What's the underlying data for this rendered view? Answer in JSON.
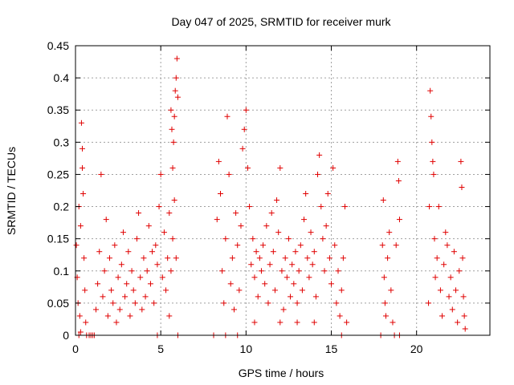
{
  "chart_data": {
    "type": "scatter",
    "title": "Day 047 of 2025, SRMTID for receiver murk",
    "xlabel": "GPS time / hours",
    "ylabel": "SRMTID / TECUs",
    "xlim": [
      0,
      24.3
    ],
    "ylim": [
      0,
      0.45
    ],
    "x_ticks": [
      0,
      5,
      10,
      15,
      20
    ],
    "x_tick_labels": [
      "0",
      "5",
      "10",
      "15",
      "20"
    ],
    "y_ticks": [
      0,
      0.05,
      0.1,
      0.15,
      0.2,
      0.25,
      0.3,
      0.35,
      0.4,
      0.45
    ],
    "y_tick_labels": [
      "0",
      "0.05",
      "0.1",
      "0.15",
      "0.2",
      "0.25",
      "0.3",
      "0.35",
      "0.4",
      "0.45"
    ],
    "grid": true,
    "marker": "+",
    "marker_color": "#e00000",
    "series": [
      {
        "name": "SRMTID",
        "points": [
          [
            0.05,
            0.14
          ],
          [
            0.1,
            0.09
          ],
          [
            0.15,
            0.05
          ],
          [
            0.2,
            0.2
          ],
          [
            0.25,
            0.03
          ],
          [
            0.3,
            0.17
          ],
          [
            0.35,
            0.33
          ],
          [
            0.4,
            0.29
          ],
          [
            0.4,
            0.26
          ],
          [
            0.45,
            0.22
          ],
          [
            0.5,
            0.12
          ],
          [
            0.55,
            0.07
          ],
          [
            0.6,
            0.02
          ],
          [
            0.2,
            0.0
          ],
          [
            0.3,
            0.005
          ],
          [
            0.65,
            0.0
          ],
          [
            0.8,
            0.0
          ],
          [
            0.9,
            0.0
          ],
          [
            1.0,
            0.0
          ],
          [
            1.1,
            0.0
          ],
          [
            1.2,
            0.04
          ],
          [
            1.3,
            0.08
          ],
          [
            1.4,
            0.13
          ],
          [
            1.5,
            0.25
          ],
          [
            1.6,
            0.06
          ],
          [
            1.7,
            0.1
          ],
          [
            1.8,
            0.18
          ],
          [
            1.9,
            0.03
          ],
          [
            2.0,
            0.12
          ],
          [
            2.1,
            0.07
          ],
          [
            2.2,
            0.05
          ],
          [
            2.3,
            0.14
          ],
          [
            2.4,
            0.02
          ],
          [
            2.5,
            0.09
          ],
          [
            2.6,
            0.04
          ],
          [
            2.7,
            0.11
          ],
          [
            2.8,
            0.16
          ],
          [
            2.9,
            0.06
          ],
          [
            3.0,
            0.08
          ],
          [
            3.1,
            0.13
          ],
          [
            3.2,
            0.03
          ],
          [
            3.3,
            0.1
          ],
          [
            3.4,
            0.07
          ],
          [
            3.5,
            0.05
          ],
          [
            3.6,
            0.15
          ],
          [
            3.7,
            0.19
          ],
          [
            3.8,
            0.09
          ],
          [
            3.9,
            0.04
          ],
          [
            4.0,
            0.12
          ],
          [
            4.1,
            0.06
          ],
          [
            4.2,
            0.1
          ],
          [
            4.3,
            0.17
          ],
          [
            4.4,
            0.08
          ],
          [
            4.5,
            0.13
          ],
          [
            4.6,
            0.05
          ],
          [
            4.7,
            0.14
          ],
          [
            4.8,
            0.11
          ],
          [
            4.9,
            0.2
          ],
          [
            5.0,
            0.25
          ],
          [
            5.1,
            0.09
          ],
          [
            5.2,
            0.16
          ],
          [
            5.3,
            0.07
          ],
          [
            5.4,
            0.12
          ],
          [
            5.5,
            0.19
          ],
          [
            5.6,
            0.35
          ],
          [
            5.65,
            0.32
          ],
          [
            5.7,
            0.26
          ],
          [
            5.75,
            0.3
          ],
          [
            5.8,
            0.34
          ],
          [
            5.85,
            0.38
          ],
          [
            5.9,
            0.4
          ],
          [
            5.95,
            0.43
          ],
          [
            6.0,
            0.37
          ],
          [
            6.0,
            0.0
          ],
          [
            4.8,
            0.0
          ],
          [
            5.5,
            0.03
          ],
          [
            5.6,
            0.1
          ],
          [
            5.7,
            0.15
          ],
          [
            5.8,
            0.21
          ],
          [
            5.9,
            0.12
          ],
          [
            8.1,
            0.0
          ],
          [
            8.3,
            0.18
          ],
          [
            8.4,
            0.27
          ],
          [
            8.5,
            0.22
          ],
          [
            8.6,
            0.1
          ],
          [
            8.7,
            0.05
          ],
          [
            8.8,
            0.15
          ],
          [
            8.9,
            0.34
          ],
          [
            9.0,
            0.25
          ],
          [
            9.1,
            0.08
          ],
          [
            9.2,
            0.12
          ],
          [
            9.3,
            0.04
          ],
          [
            9.4,
            0.19
          ],
          [
            9.5,
            0.14
          ],
          [
            9.6,
            0.07
          ],
          [
            9.7,
            0.17
          ],
          [
            9.8,
            0.29
          ],
          [
            9.9,
            0.32
          ],
          [
            10.0,
            0.35
          ],
          [
            10.1,
            0.26
          ],
          [
            10.2,
            0.2
          ],
          [
            10.3,
            0.11
          ],
          [
            10.4,
            0.15
          ],
          [
            10.5,
            0.09
          ],
          [
            10.6,
            0.13
          ],
          [
            10.7,
            0.06
          ],
          [
            10.8,
            0.12
          ],
          [
            10.9,
            0.1
          ],
          [
            11.0,
            0.14
          ],
          [
            11.1,
            0.08
          ],
          [
            11.2,
            0.17
          ],
          [
            11.3,
            0.05
          ],
          [
            11.4,
            0.11
          ],
          [
            11.5,
            0.19
          ],
          [
            11.6,
            0.13
          ],
          [
            11.7,
            0.07
          ],
          [
            11.8,
            0.21
          ],
          [
            11.9,
            0.16
          ],
          [
            12.0,
            0.26
          ],
          [
            12.1,
            0.1
          ],
          [
            12.2,
            0.04
          ],
          [
            12.3,
            0.12
          ],
          [
            12.4,
            0.09
          ],
          [
            12.5,
            0.15
          ],
          [
            12.6,
            0.06
          ],
          [
            12.7,
            0.11
          ],
          [
            12.8,
            0.08
          ],
          [
            12.9,
            0.13
          ],
          [
            13.0,
            0.05
          ],
          [
            13.1,
            0.1
          ],
          [
            13.2,
            0.14
          ],
          [
            13.3,
            0.07
          ],
          [
            13.4,
            0.18
          ],
          [
            13.5,
            0.22
          ],
          [
            13.6,
            0.12
          ],
          [
            13.7,
            0.09
          ],
          [
            13.8,
            0.16
          ],
          [
            13.9,
            0.11
          ],
          [
            14.0,
            0.13
          ],
          [
            14.1,
            0.06
          ],
          [
            14.2,
            0.25
          ],
          [
            14.3,
            0.28
          ],
          [
            14.4,
            0.2
          ],
          [
            14.5,
            0.15
          ],
          [
            14.6,
            0.1
          ],
          [
            14.7,
            0.17
          ],
          [
            14.8,
            0.22
          ],
          [
            14.9,
            0.12
          ],
          [
            15.0,
            0.08
          ],
          [
            15.1,
            0.26
          ],
          [
            15.2,
            0.14
          ],
          [
            15.3,
            0.05
          ],
          [
            15.4,
            0.1
          ],
          [
            15.5,
            0.03
          ],
          [
            15.6,
            0.07
          ],
          [
            15.7,
            0.12
          ],
          [
            15.8,
            0.2
          ],
          [
            15.9,
            0.02
          ],
          [
            8.8,
            0.0
          ],
          [
            9.5,
            0.0
          ],
          [
            10.5,
            0.02
          ],
          [
            12.0,
            0.02
          ],
          [
            13.0,
            0.02
          ],
          [
            14.0,
            0.02
          ],
          [
            15.6,
            0.0
          ],
          [
            17.9,
            0.0
          ],
          [
            18.0,
            0.14
          ],
          [
            18.05,
            0.21
          ],
          [
            18.1,
            0.09
          ],
          [
            18.15,
            0.05
          ],
          [
            18.2,
            0.03
          ],
          [
            18.3,
            0.12
          ],
          [
            18.4,
            0.16
          ],
          [
            18.5,
            0.07
          ],
          [
            18.6,
            0.02
          ],
          [
            18.7,
            0.0
          ],
          [
            18.8,
            0.14
          ],
          [
            18.9,
            0.27
          ],
          [
            18.95,
            0.24
          ],
          [
            19.0,
            0.18
          ],
          [
            19.0,
            0.0
          ],
          [
            20.7,
            0.05
          ],
          [
            20.75,
            0.2
          ],
          [
            20.8,
            0.38
          ],
          [
            20.85,
            0.34
          ],
          [
            20.9,
            0.3
          ],
          [
            20.95,
            0.27
          ],
          [
            21.0,
            0.25
          ],
          [
            21.05,
            0.15
          ],
          [
            21.1,
            0.09
          ],
          [
            21.2,
            0.12
          ],
          [
            21.3,
            0.2
          ],
          [
            21.4,
            0.07
          ],
          [
            21.5,
            0.03
          ],
          [
            21.6,
            0.11
          ],
          [
            21.7,
            0.16
          ],
          [
            21.8,
            0.14
          ],
          [
            21.9,
            0.06
          ],
          [
            22.0,
            0.09
          ],
          [
            22.1,
            0.04
          ],
          [
            22.2,
            0.13
          ],
          [
            22.3,
            0.07
          ],
          [
            22.4,
            0.02
          ],
          [
            22.5,
            0.1
          ],
          [
            22.6,
            0.27
          ],
          [
            22.65,
            0.23
          ],
          [
            22.7,
            0.12
          ],
          [
            22.75,
            0.06
          ],
          [
            22.8,
            0.03
          ],
          [
            22.85,
            0.01
          ]
        ]
      }
    ]
  }
}
